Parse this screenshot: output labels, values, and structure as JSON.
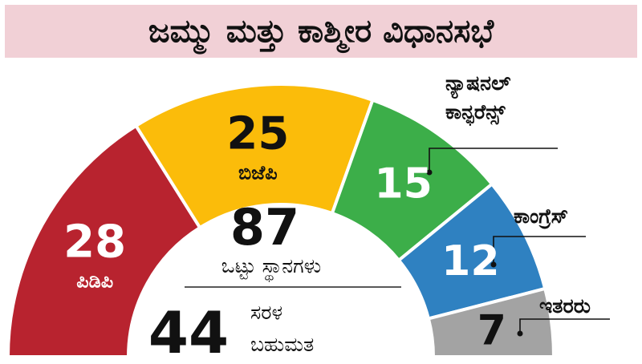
{
  "chart_data": {
    "type": "pie",
    "title": "ಜಮ್ಮು ಮತ್ತು ಕಾಶ್ಮೀರ ವಿಧಾನಸಭೆ",
    "categories": [
      "ಪಿಡಿಪಿ",
      "ಬಿಜೆಪಿ",
      "ನ್ಯಾಷನಲ್ ಕಾನ್ಫರೆನ್ಸ್",
      "ಕಾಂಗ್ರೆಸ್",
      "ಇತರರು"
    ],
    "values": [
      28,
      25,
      15,
      12,
      7
    ],
    "colors": [
      "#b8232f",
      "#fbbc0a",
      "#3cae49",
      "#2f81c1",
      "#a3a3a3"
    ],
    "total": 87,
    "total_label": "ಒಟ್ಟು ಸ್ಥಾನಗಳು",
    "majority": 44,
    "majority_label_line1": "ಸರಳ",
    "majority_label_line2": "ಬಹುಮತ"
  }
}
